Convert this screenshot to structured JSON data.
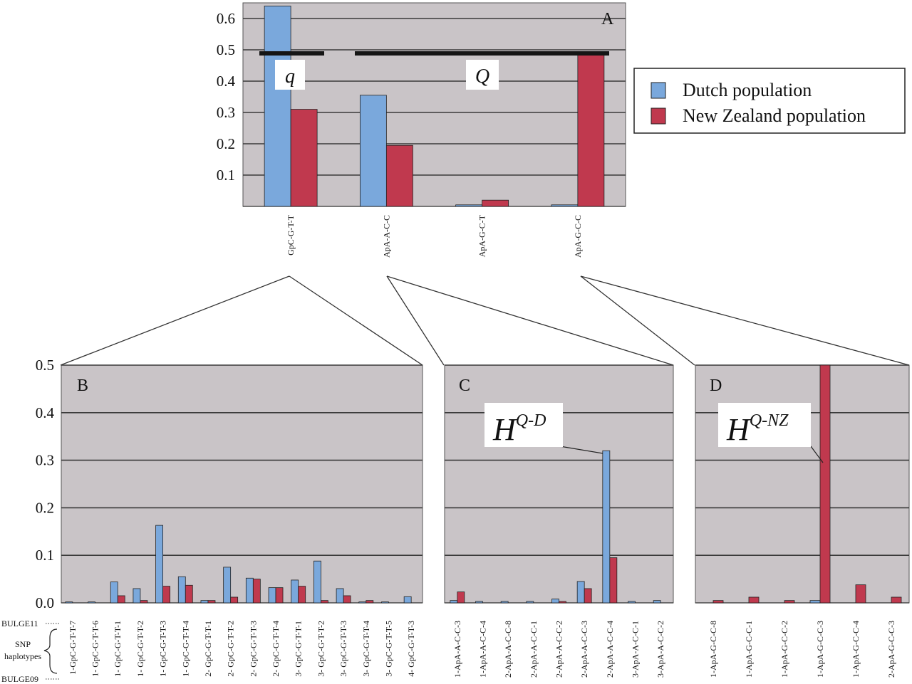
{
  "colors": {
    "dutch": "#7aa8dc",
    "nz": "#c0394e",
    "plot_bg": "#c9c4c7",
    "grid": "#3a3a3a"
  },
  "legend": {
    "dutch_label": "Dutch population",
    "nz_label": "New Zealand population"
  },
  "annotations": {
    "q_label": "q",
    "Q_label": "Q",
    "hqd_main": "H",
    "hqd_sup": "Q-D",
    "hqnz_main": "H",
    "hqnz_sup": "Q-NZ",
    "bulge11": "BULGE11",
    "snp1": "SNP",
    "snp2": "haplotypes",
    "bulge09": "BULGE09"
  },
  "chart_data": [
    {
      "type": "bar",
      "panel": "A",
      "categories": [
        "GpC-G-T-T",
        "ApA-A-C-C",
        "ApA-G-C-T",
        "ApA-G-C-C"
      ],
      "series": [
        {
          "name": "Dutch population",
          "values": [
            0.64,
            0.355,
            0.005,
            0.005
          ]
        },
        {
          "name": "New Zealand population",
          "values": [
            0.31,
            0.195,
            0.02,
            0.485
          ]
        }
      ],
      "yticks": [
        0.1,
        0.2,
        0.3,
        0.4,
        0.5,
        0.6
      ],
      "ylim": [
        0,
        0.65
      ],
      "grid": true
    },
    {
      "type": "bar",
      "panel": "B",
      "categories": [
        "1-GpC-G-T-T-7",
        "1- GpC-G-T-T-6",
        "1- GpC-G-T-T-1",
        "1- GpC-G-T-T-2",
        "1- GpC-G-T-T-3",
        "1- GpC-G-T-T-4",
        "2- GpC-G-T-T-1",
        "2- GpC-G-T-T-2",
        "2- GpC-G-T-T-3",
        "2- GpC-G-T-T-4",
        "3- GpC-G-T-T-1",
        "3- GpC-G-T-T-2",
        "3- GpC-G-T-T-3",
        "3- GpC-G-T-T-4",
        "3- GpC-G-T-T-5",
        "4- GpC-G-T-T-3"
      ],
      "series": [
        {
          "name": "Dutch population",
          "values": [
            0.002,
            0.002,
            0.044,
            0.03,
            0.163,
            0.055,
            0.005,
            0.075,
            0.052,
            0.032,
            0.048,
            0.088,
            0.03,
            0.002,
            0.002,
            0.013
          ]
        },
        {
          "name": "New Zealand population",
          "values": [
            0.0,
            0.0,
            0.015,
            0.005,
            0.035,
            0.037,
            0.005,
            0.012,
            0.05,
            0.032,
            0.035,
            0.005,
            0.015,
            0.005,
            0.0,
            0.0
          ]
        }
      ],
      "yticks": [
        0.0,
        0.1,
        0.2,
        0.3,
        0.4,
        0.5
      ],
      "ylim": [
        0,
        0.5
      ],
      "grid": true
    },
    {
      "type": "bar",
      "panel": "C",
      "categories": [
        "1-ApA-A-C-C-3",
        "1-ApA-A-C-C-4",
        "2-ApA-A-C-C-8",
        "2-ApA-A-C-C-1",
        "2-ApA-A-C-C-2",
        "2-ApA-A-C-C-3",
        "2-ApA-A-C-C-4",
        "3-ApA-A-C-C-1",
        "3-ApA-A-C-C-2"
      ],
      "series": [
        {
          "name": "Dutch population",
          "values": [
            0.005,
            0.003,
            0.003,
            0.003,
            0.008,
            0.045,
            0.32,
            0.003,
            0.005
          ]
        },
        {
          "name": "New Zealand population",
          "values": [
            0.023,
            0.0,
            0.0,
            0.0,
            0.003,
            0.03,
            0.095,
            0.0,
            0.0
          ]
        }
      ],
      "ylim": [
        0,
        0.5
      ],
      "grid": true
    },
    {
      "type": "bar",
      "panel": "D",
      "categories": [
        "1-ApA-G-C-C-8",
        "1-ApA-G-C-C-1",
        "1-ApA-G-C-C-2",
        "1-ApA-G-C-C-3",
        "1-ApA-G-C-C-4",
        "2-ApA-G-C-C-3"
      ],
      "series": [
        {
          "name": "Dutch population",
          "values": [
            0.0,
            0.0,
            0.0,
            0.005,
            0.0,
            0.0
          ]
        },
        {
          "name": "New Zealand population",
          "values": [
            0.005,
            0.012,
            0.005,
            0.5,
            0.038,
            0.012
          ]
        }
      ],
      "ylim": [
        0,
        0.5
      ],
      "grid": true
    }
  ]
}
